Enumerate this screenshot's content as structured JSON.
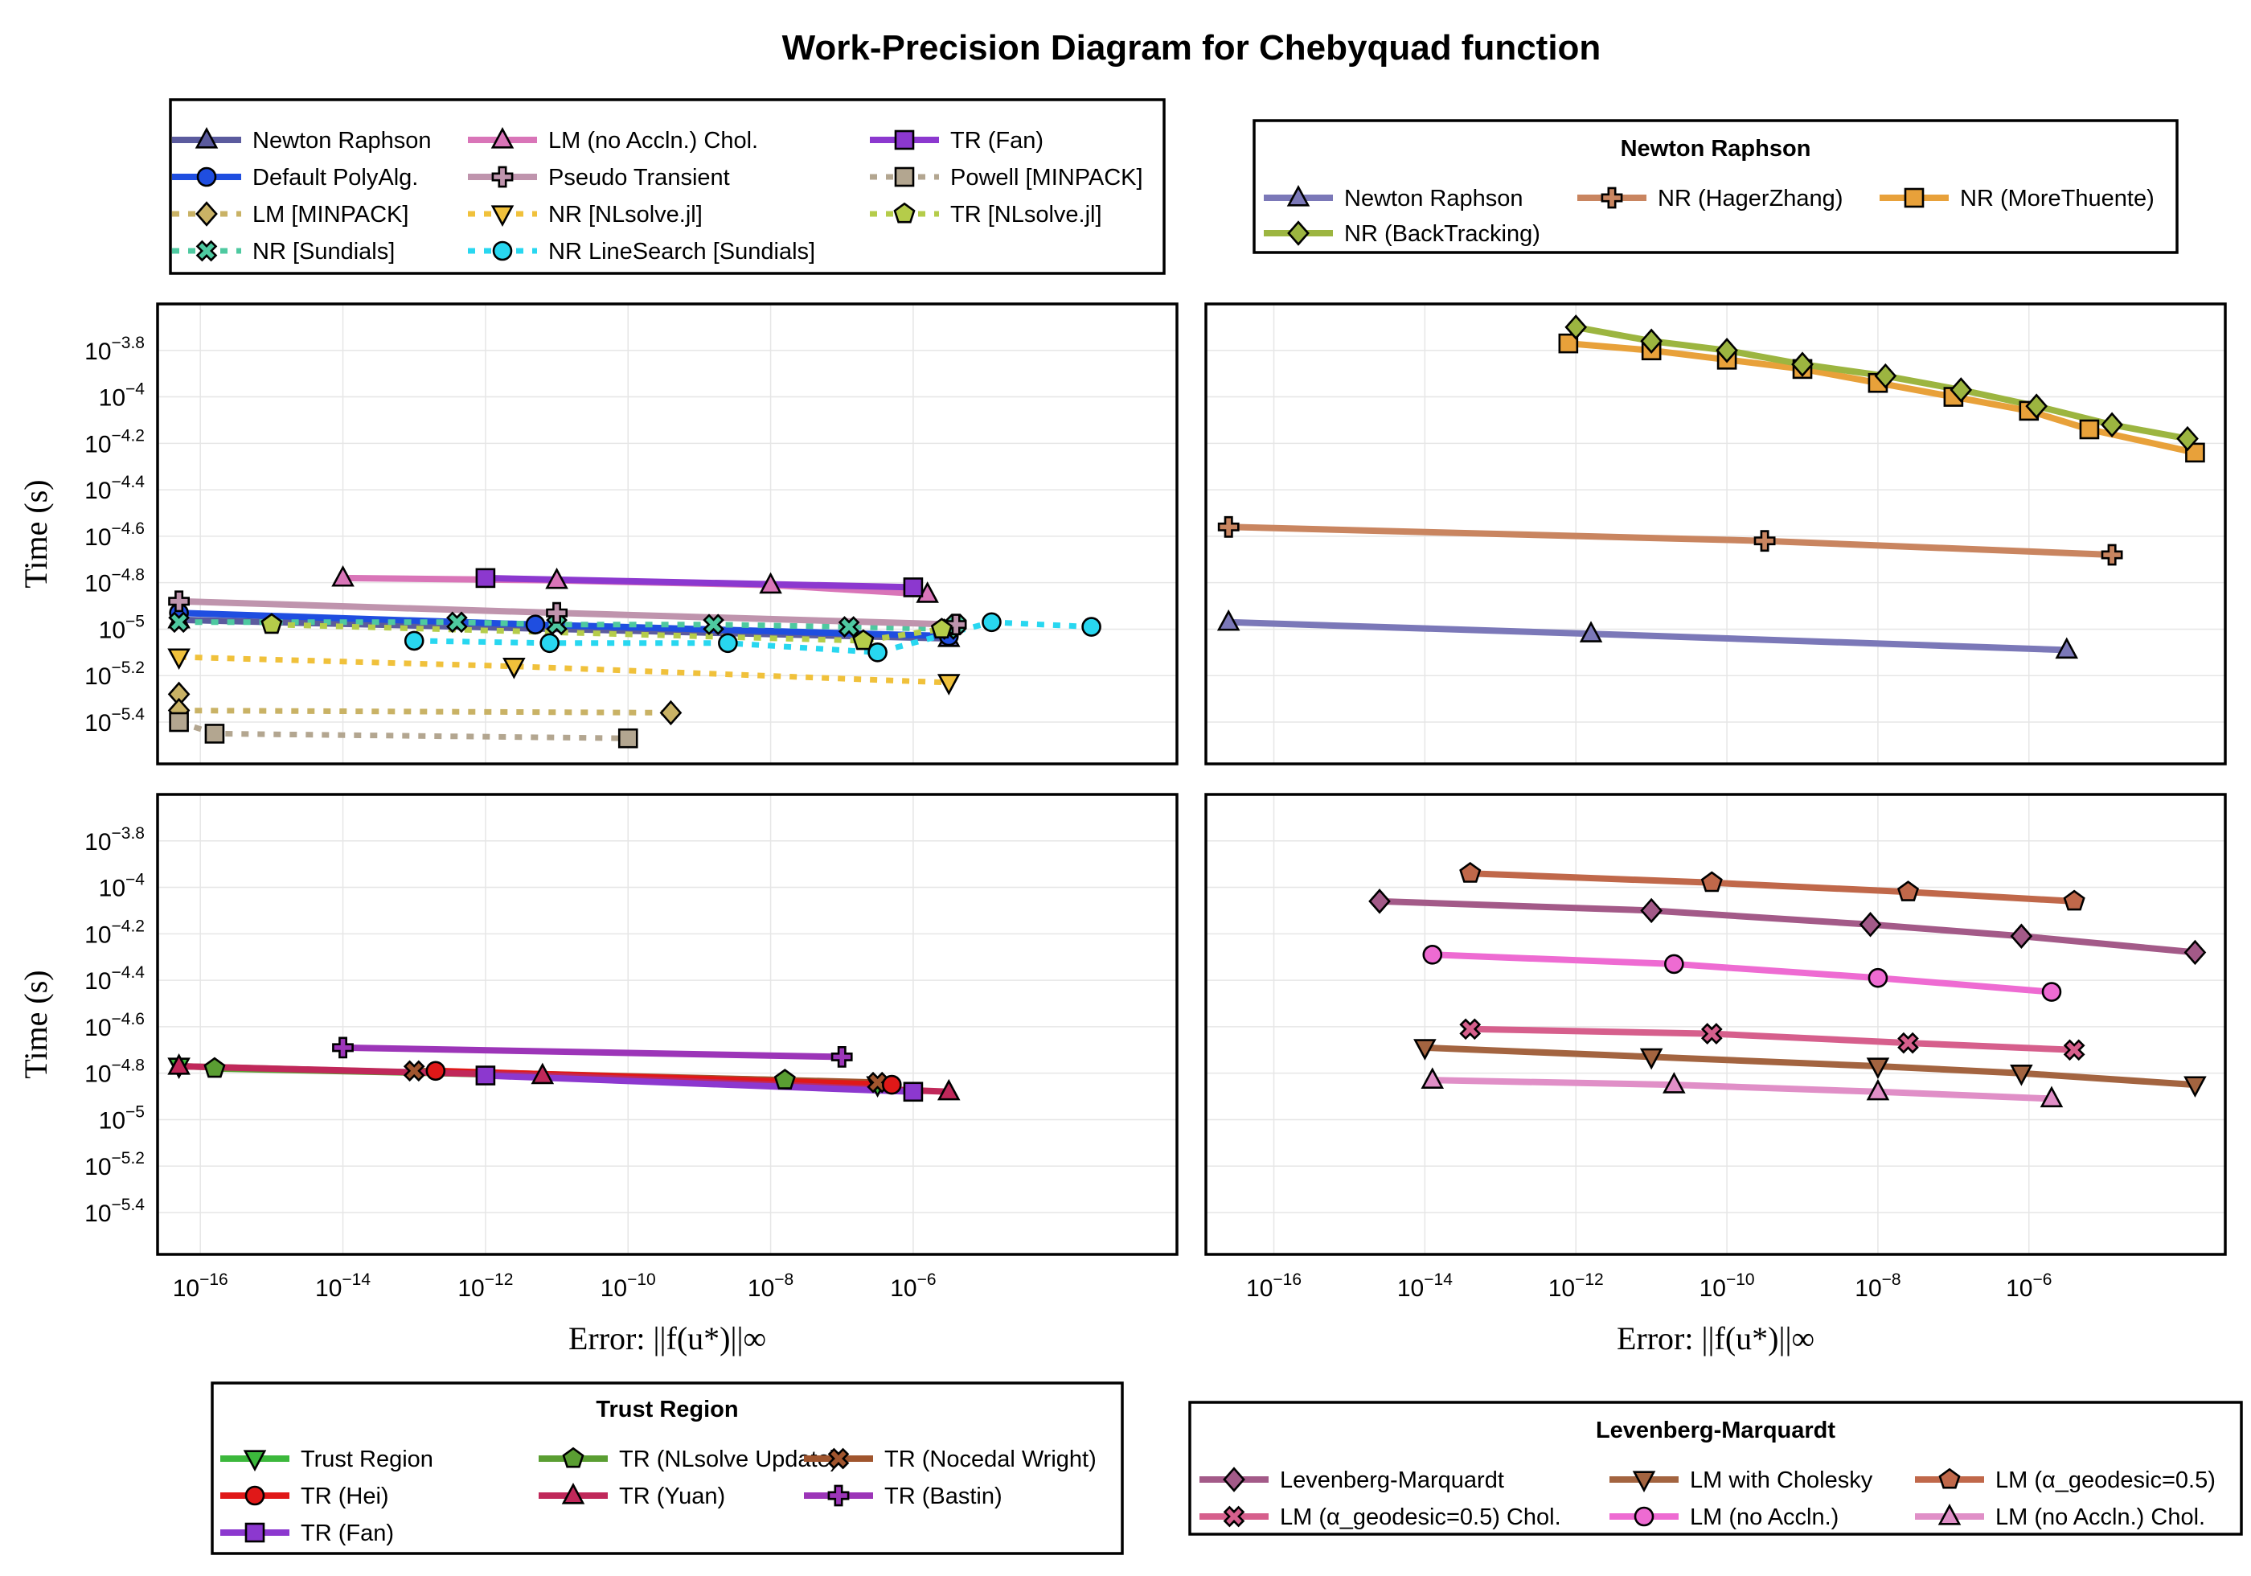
{
  "title": "Work-Precision Diagram for Chebyquad function",
  "colors": {
    "grid": "#e6e6e6",
    "frame": "#000000"
  },
  "legends": [
    {
      "title": "",
      "items": [
        {
          "label": "Newton Raphson",
          "ref": 0
        },
        {
          "label": "Default PolyAlg.",
          "ref": 1
        },
        {
          "label": "LM [MINPACK]",
          "ref": 2
        },
        {
          "label": "NR [Sundials]",
          "ref": 3
        },
        {
          "label": "LM (no Accln.) Chol.",
          "ref": 4
        },
        {
          "label": "Pseudo Transient",
          "ref": 5
        },
        {
          "label": "NR [NLsolve.jl]",
          "ref": 6
        },
        {
          "label": "NR LineSearch [Sundials]",
          "ref": 7
        },
        {
          "label": "TR (Fan)",
          "ref": 8
        },
        {
          "label": "Powell [MINPACK]",
          "ref": 9
        },
        {
          "label": "TR [NLsolve.jl]",
          "ref": 10
        }
      ]
    },
    {
      "title": "Newton Raphson",
      "items": [
        {
          "label": "Newton Raphson"
        },
        {
          "label": "NR (HagerZhang)"
        },
        {
          "label": "NR (MoreThuente)"
        },
        {
          "label": "NR (BackTracking)"
        }
      ]
    },
    {
      "title": "Trust Region",
      "items": [
        {
          "label": "Trust Region"
        },
        {
          "label": "TR (NLsolve Update)"
        },
        {
          "label": "TR (Nocedal Wright)"
        },
        {
          "label": "TR (Hei)"
        },
        {
          "label": "TR (Yuan)"
        },
        {
          "label": "TR (Bastin)"
        },
        {
          "label": "TR (Fan)"
        }
      ]
    },
    {
      "title": "Levenberg-Marquardt",
      "items": [
        {
          "label": "Levenberg-Marquardt"
        },
        {
          "label": "LM with Cholesky"
        },
        {
          "label": "LM (α_geodesic=0.5)"
        },
        {
          "label": "LM (α_geodesic=0.5) Chol."
        },
        {
          "label": "LM (no Accln.)"
        },
        {
          "label": "LM (no Accln.) Chol."
        }
      ]
    }
  ],
  "chart_data": [
    {
      "type": "line",
      "panel": "top-left",
      "title": "",
      "xlabel": "Error: ||f(u*)||∞",
      "ylabel": "Time (s)",
      "xscale": "log10",
      "yscale": "log10",
      "xlim": [
        -16.6,
        -2.3
      ],
      "ylim": [
        -5.58,
        -3.6
      ],
      "xticks": [
        -16,
        -14,
        -12,
        -10,
        -8,
        -6
      ],
      "yticks": [
        -5.4,
        -5.2,
        -5.0,
        -4.8,
        -4.6,
        -4.4,
        -4.2,
        -4.0,
        -3.8
      ],
      "grid": true,
      "series": [
        {
          "name": "Newton Raphson",
          "color": "#5b5b9e",
          "marker": "triangle",
          "dash": false,
          "x": [
            -16.3,
            -5.5
          ],
          "y": [
            -4.96,
            -5.04
          ]
        },
        {
          "name": "Default PolyAlg.",
          "color": "#1f4ee0",
          "marker": "circle",
          "dash": false,
          "x": [
            -16.3,
            -11.3,
            -5.5
          ],
          "y": [
            -4.93,
            -4.98,
            -5.03
          ]
        },
        {
          "name": "LM [MINPACK]",
          "color": "#c9b265",
          "marker": "diamond",
          "dash": true,
          "x": [
            -16.3,
            -16.3,
            -9.4
          ],
          "y": [
            -5.28,
            -5.35,
            -5.36
          ]
        },
        {
          "name": "NR [Sundials]",
          "color": "#4ec9a0",
          "marker": "x",
          "dash": true,
          "x": [
            -16.3,
            -12.4,
            -11.0,
            -8.8,
            -6.9,
            -5.5,
            -5.4
          ],
          "y": [
            -4.97,
            -4.97,
            -4.98,
            -4.98,
            -4.99,
            -5.0,
            -4.98
          ]
        },
        {
          "name": "LM (no Accln.) Chol.",
          "color": "#d975b8",
          "marker": "triangle",
          "dash": false,
          "x": [
            -14.0,
            -11.0,
            -8.0,
            -5.8
          ],
          "y": [
            -4.78,
            -4.79,
            -4.81,
            -4.85
          ]
        },
        {
          "name": "Pseudo Transient",
          "color": "#bf94ad",
          "marker": "plus",
          "dash": false,
          "x": [
            -16.3,
            -11.0,
            -5.4
          ],
          "y": [
            -4.88,
            -4.93,
            -4.98
          ]
        },
        {
          "name": "NR [NLsolve.jl]",
          "color": "#f0c13b",
          "marker": "triangle-down",
          "dash": true,
          "x": [
            -16.3,
            -11.6,
            -5.5
          ],
          "y": [
            -5.12,
            -5.16,
            -5.23
          ]
        },
        {
          "name": "NR LineSearch [Sundials]",
          "color": "#28d7f0",
          "marker": "circle",
          "dash": true,
          "x": [
            -13.0,
            -11.1,
            -8.6,
            -6.5,
            -4.9,
            -3.5
          ],
          "y": [
            -5.05,
            -5.06,
            -5.06,
            -5.1,
            -4.97,
            -4.99
          ]
        },
        {
          "name": "TR (Fan)",
          "color": "#8c38cf",
          "marker": "square",
          "dash": false,
          "x": [
            -12.0,
            -6.0
          ],
          "y": [
            -4.78,
            -4.82
          ]
        },
        {
          "name": "Powell [MINPACK]",
          "color": "#b3a690",
          "marker": "square",
          "dash": true,
          "x": [
            -16.3,
            -15.8,
            -10.0
          ],
          "y": [
            -5.4,
            -5.45,
            -5.47
          ]
        },
        {
          "name": "TR [NLsolve.jl]",
          "color": "#b5cc4a",
          "marker": "pentagon",
          "dash": true,
          "x": [
            -15.0,
            -6.7,
            -5.6
          ],
          "y": [
            -4.98,
            -5.05,
            -5.0
          ]
        }
      ]
    },
    {
      "type": "line",
      "panel": "top-right",
      "title": "",
      "xlabel": "Error: ||f(u*)||∞",
      "ylabel": "",
      "xscale": "log10",
      "yscale": "log10",
      "xlim": [
        -16.9,
        -3.4
      ],
      "ylim": [
        -5.58,
        -3.6
      ],
      "xticks": [
        -16,
        -14,
        -12,
        -10,
        -8,
        -6
      ],
      "yticks": [
        -5.4,
        -5.2,
        -5.0,
        -4.8,
        -4.6,
        -4.4,
        -4.2,
        -4.0,
        -3.8
      ],
      "grid": true,
      "series": [
        {
          "name": "Newton Raphson",
          "color": "#7b78b8",
          "marker": "triangle",
          "dash": false,
          "x": [
            -16.6,
            -11.8,
            -5.5
          ],
          "y": [
            -4.97,
            -5.02,
            -5.09
          ]
        },
        {
          "name": "NR (HagerZhang)",
          "color": "#c98560",
          "marker": "plus",
          "dash": false,
          "x": [
            -16.6,
            -9.5,
            -4.9
          ],
          "y": [
            -4.56,
            -4.62,
            -4.68
          ]
        },
        {
          "name": "NR (MoreThuente)",
          "color": "#e8a13a",
          "marker": "square",
          "dash": false,
          "x": [
            -12.1,
            -11.0,
            -10.0,
            -9.0,
            -8.0,
            -7.0,
            -6.0,
            -5.2,
            -3.8
          ],
          "y": [
            -3.77,
            -3.8,
            -3.84,
            -3.88,
            -3.94,
            -4.0,
            -4.06,
            -4.14,
            -4.24
          ]
        },
        {
          "name": "NR (BackTracking)",
          "color": "#9cb540",
          "marker": "diamond",
          "dash": false,
          "x": [
            -12.0,
            -11.0,
            -10.0,
            -9.0,
            -7.9,
            -6.9,
            -5.9,
            -4.9,
            -3.9
          ],
          "y": [
            -3.7,
            -3.76,
            -3.8,
            -3.86,
            -3.91,
            -3.97,
            -4.04,
            -4.12,
            -4.18
          ]
        }
      ]
    },
    {
      "type": "line",
      "panel": "bottom-left",
      "title": "",
      "xlabel": "Error: ||f(u*)||∞",
      "ylabel": "Time (s)",
      "xscale": "log10",
      "yscale": "log10",
      "xlim": [
        -16.6,
        -2.3
      ],
      "ylim": [
        -5.58,
        -3.6
      ],
      "xticks": [
        -16,
        -14,
        -12,
        -10,
        -8,
        -6
      ],
      "yticks": [
        -5.4,
        -5.2,
        -5.0,
        -4.8,
        -4.6,
        -4.4,
        -4.2,
        -4.0,
        -3.8
      ],
      "grid": true,
      "series": [
        {
          "name": "Trust Region",
          "color": "#3cb83c",
          "marker": "triangle-down",
          "dash": false,
          "x": [
            -16.3,
            -6.5
          ],
          "y": [
            -4.77,
            -4.85
          ]
        },
        {
          "name": "TR (NLsolve Update)",
          "color": "#5a9e32",
          "marker": "pentagon",
          "dash": false,
          "x": [
            -15.8,
            -7.8
          ],
          "y": [
            -4.78,
            -4.83
          ]
        },
        {
          "name": "TR (Nocedal Wright)",
          "color": "#a0552e",
          "marker": "x",
          "dash": false,
          "x": [
            -13.0,
            -6.5
          ],
          "y": [
            -4.79,
            -4.84
          ]
        },
        {
          "name": "TR (Hei)",
          "color": "#e01818",
          "marker": "circle",
          "dash": false,
          "x": [
            -12.7,
            -6.3
          ],
          "y": [
            -4.79,
            -4.85
          ]
        },
        {
          "name": "TR (Yuan)",
          "color": "#c0285a",
          "marker": "triangle",
          "dash": false,
          "x": [
            -16.3,
            -11.2,
            -5.5
          ],
          "y": [
            -4.77,
            -4.81,
            -4.88
          ]
        },
        {
          "name": "TR (Bastin)",
          "color": "#9c35b8",
          "marker": "plus",
          "dash": false,
          "x": [
            -14.0,
            -7.0
          ],
          "y": [
            -4.69,
            -4.73
          ]
        },
        {
          "name": "TR (Fan)",
          "color": "#8c38cf",
          "marker": "square",
          "dash": false,
          "x": [
            -12.0,
            -6.0
          ],
          "y": [
            -4.81,
            -4.88
          ]
        }
      ]
    },
    {
      "type": "line",
      "panel": "bottom-right",
      "title": "",
      "xlabel": "Error: ||f(u*)||∞",
      "ylabel": "",
      "xscale": "log10",
      "yscale": "log10",
      "xlim": [
        -16.9,
        -3.4
      ],
      "ylim": [
        -5.58,
        -3.6
      ],
      "xticks": [
        -16,
        -14,
        -12,
        -10,
        -8,
        -6
      ],
      "yticks": [
        -5.4,
        -5.2,
        -5.0,
        -4.8,
        -4.6,
        -4.4,
        -4.2,
        -4.0,
        -3.8
      ],
      "grid": true,
      "series": [
        {
          "name": "Levenberg-Marquardt",
          "color": "#a35a88",
          "marker": "diamond",
          "dash": false,
          "x": [
            -14.6,
            -11.0,
            -8.1,
            -6.1,
            -3.8
          ],
          "y": [
            -4.06,
            -4.1,
            -4.16,
            -4.21,
            -4.28
          ]
        },
        {
          "name": "LM with Cholesky",
          "color": "#a36440",
          "marker": "triangle-down",
          "dash": false,
          "x": [
            -14.0,
            -11.0,
            -8.0,
            -6.1,
            -3.8
          ],
          "y": [
            -4.69,
            -4.73,
            -4.77,
            -4.8,
            -4.85
          ]
        },
        {
          "name": "LM (α_geodesic=0.5)",
          "color": "#c0684a",
          "marker": "pentagon",
          "dash": false,
          "x": [
            -13.4,
            -10.2,
            -7.6,
            -5.4
          ],
          "y": [
            -3.94,
            -3.98,
            -4.02,
            -4.06
          ]
        },
        {
          "name": "LM (α_geodesic=0.5) Chol.",
          "color": "#d65f8c",
          "marker": "x",
          "dash": false,
          "x": [
            -13.4,
            -10.2,
            -7.6,
            -5.4
          ],
          "y": [
            -4.61,
            -4.63,
            -4.67,
            -4.7
          ]
        },
        {
          "name": "LM (no Accln.)",
          "color": "#ee6bd2",
          "marker": "circle",
          "dash": false,
          "x": [
            -13.9,
            -10.7,
            -8.0,
            -5.7
          ],
          "y": [
            -4.29,
            -4.33,
            -4.39,
            -4.45
          ]
        },
        {
          "name": "LM (no Accln.) Chol.",
          "color": "#e08fc7",
          "marker": "triangle",
          "dash": false,
          "x": [
            -13.9,
            -10.7,
            -8.0,
            -5.7
          ],
          "y": [
            -4.83,
            -4.85,
            -4.88,
            -4.91
          ]
        }
      ]
    }
  ]
}
